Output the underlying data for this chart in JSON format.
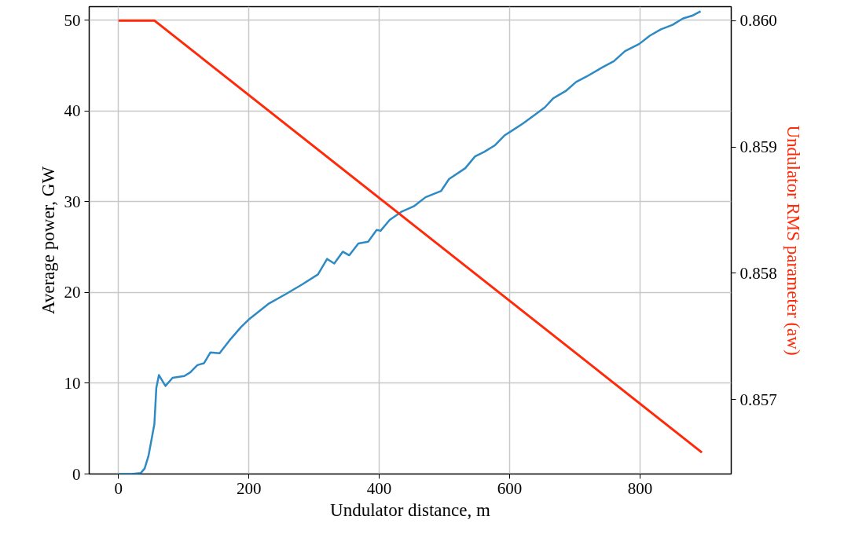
{
  "chart_data": {
    "type": "line",
    "xlabel": "Undulator distance, m",
    "ylabel": "Average power, GW",
    "y2label": "Undulator RMS parameter (aw)",
    "xlim": [
      -45,
      940
    ],
    "xticks": [
      0,
      200,
      400,
      600,
      800
    ],
    "ylim": [
      0,
      51.5
    ],
    "yticks": [
      0,
      10,
      20,
      30,
      40,
      50
    ],
    "y2lim": [
      0.85641,
      0.86011
    ],
    "y2ticks": [
      {
        "value": 0.857,
        "label": "0.857"
      },
      {
        "value": 0.858,
        "label": "0.858"
      },
      {
        "value": 0.859,
        "label": "0.859"
      },
      {
        "value": 0.86,
        "label": "0.860"
      }
    ],
    "grid": true,
    "marker": "none",
    "line_style": "solid",
    "series": [
      {
        "color": "#2e8ac4",
        "x": [
          0,
          20,
          34,
          40,
          46,
          55,
          58,
          62,
          72,
          83,
          101,
          110,
          121,
          131,
          141,
          155,
          170,
          188,
          201,
          231,
          256,
          282,
          306,
          320,
          331,
          344,
          354,
          368,
          383,
          396,
          402,
          416,
          434,
          453,
          471,
          495,
          507,
          532,
          547,
          561,
          577,
          592,
          605,
          620,
          639,
          654,
          667,
          686,
          702,
          718,
          742,
          760,
          777,
          799,
          815,
          832,
          850,
          866,
          880,
          893
        ],
        "values": [
          0,
          0,
          0.1,
          0.6,
          2.0,
          5.5,
          9.5,
          10.9,
          9.7,
          10.6,
          10.8,
          11.2,
          12.0,
          12.2,
          13.4,
          13.3,
          14.7,
          16.2,
          17.1,
          18.8,
          19.8,
          20.9,
          22.0,
          23.7,
          23.2,
          24.5,
          24.1,
          25.4,
          25.6,
          26.9,
          26.8,
          28.0,
          28.9,
          29.5,
          30.5,
          31.2,
          32.5,
          33.7,
          35.0,
          35.5,
          36.2,
          37.3,
          37.9,
          38.6,
          39.6,
          40.4,
          41.4,
          42.2,
          43.2,
          43.8,
          44.8,
          45.5,
          46.6,
          47.4,
          48.3,
          49.0,
          49.5,
          50.2,
          50.5,
          51.0
        ]
      },
      {
        "color": "#ff2a0a",
        "axis": "y2",
        "x": [
          0,
          55,
          895
        ],
        "values": [
          0.86,
          0.86,
          0.85658
        ]
      }
    ]
  }
}
